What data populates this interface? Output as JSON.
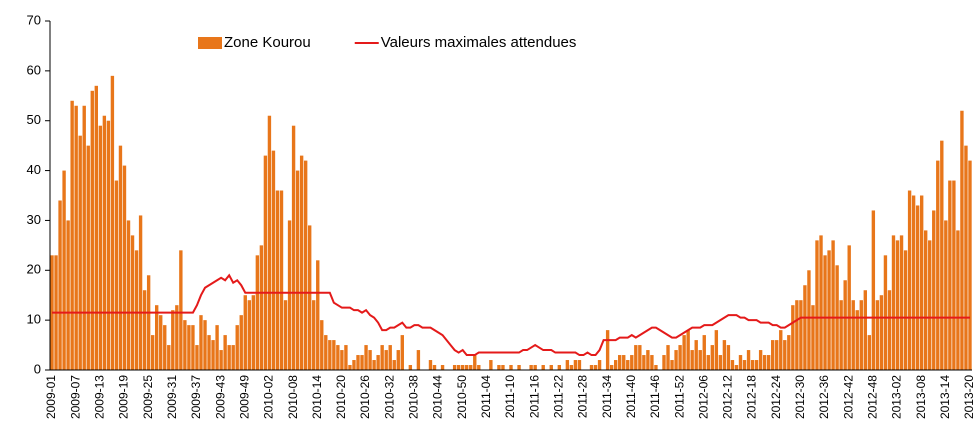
{
  "chart_data": {
    "type": "bar",
    "categories": [
      "2009-01",
      null,
      null,
      null,
      null,
      null,
      "2009-07",
      null,
      null,
      null,
      null,
      null,
      "2009-13",
      null,
      null,
      null,
      null,
      null,
      "2009-19",
      null,
      null,
      null,
      null,
      null,
      "2009-25",
      null,
      null,
      null,
      null,
      null,
      "2009-31",
      null,
      null,
      null,
      null,
      null,
      "2009-37",
      null,
      null,
      null,
      null,
      null,
      "2009-43",
      null,
      null,
      null,
      null,
      null,
      "2009-49",
      null,
      null,
      null,
      null,
      null,
      "2010-02",
      null,
      null,
      null,
      null,
      null,
      "2010-08",
      null,
      null,
      null,
      null,
      null,
      "2010-14",
      null,
      null,
      null,
      null,
      null,
      "2010-20",
      null,
      null,
      null,
      null,
      null,
      "2010-26",
      null,
      null,
      null,
      null,
      null,
      "2010-32",
      null,
      null,
      null,
      null,
      null,
      "2010-38",
      null,
      null,
      null,
      null,
      null,
      "2010-44",
      null,
      null,
      null,
      null,
      null,
      "2010-50",
      null,
      null,
      null,
      null,
      null,
      "2011-04",
      null,
      null,
      null,
      null,
      null,
      "2011-10",
      null,
      null,
      null,
      null,
      null,
      "2011-16",
      null,
      null,
      null,
      null,
      null,
      "2011-22",
      null,
      null,
      null,
      null,
      null,
      "2011-28",
      null,
      null,
      null,
      null,
      null,
      "2011-34",
      null,
      null,
      null,
      null,
      null,
      "2011-40",
      null,
      null,
      null,
      null,
      null,
      "2011-46",
      null,
      null,
      null,
      null,
      null,
      "2011-52",
      null,
      null,
      null,
      null,
      null,
      "2012-06",
      null,
      null,
      null,
      null,
      null,
      "2012-12",
      null,
      null,
      null,
      null,
      null,
      "2012-18",
      null,
      null,
      null,
      null,
      null,
      "2012-24",
      null,
      null,
      null,
      null,
      null,
      "2012-30",
      null,
      null,
      null,
      null,
      null,
      "2012-36",
      null,
      null,
      null,
      null,
      null,
      "2012-42",
      null,
      null,
      null,
      null,
      null,
      "2012-48",
      null,
      null,
      null,
      null,
      null,
      "2013-02",
      null,
      null,
      null,
      null,
      null,
      "2013-08",
      null,
      null,
      null,
      null,
      null,
      "2013-14",
      null,
      null,
      null,
      null,
      null,
      "2013-20"
    ],
    "series": [
      {
        "name": "Zone Kourou",
        "color": "#e8761a",
        "kind": "bar",
        "values": [
          23,
          23,
          34,
          40,
          30,
          54,
          53,
          47,
          53,
          45,
          56,
          57,
          49,
          51,
          50,
          59,
          38,
          45,
          41,
          30,
          27,
          24,
          31,
          16,
          19,
          7,
          13,
          11,
          9,
          5,
          12,
          13,
          24,
          10,
          9,
          9,
          5,
          11,
          10,
          7,
          6,
          9,
          4,
          7,
          5,
          5,
          9,
          11,
          15,
          14,
          15,
          23,
          25,
          43,
          51,
          44,
          36,
          36,
          14,
          30,
          49,
          40,
          43,
          42,
          29,
          14,
          22,
          10,
          7,
          6,
          6,
          5,
          4,
          5,
          1,
          2,
          3,
          3,
          5,
          4,
          2,
          3,
          5,
          4,
          5,
          2,
          4,
          7,
          0,
          1,
          0,
          4,
          0,
          0,
          2,
          1,
          0,
          1,
          0,
          0,
          1,
          1,
          1,
          1,
          1,
          3,
          1,
          0,
          0,
          2,
          0,
          1,
          1,
          0,
          1,
          0,
          1,
          0,
          0,
          1,
          1,
          0,
          1,
          0,
          1,
          0,
          1,
          0,
          2,
          1,
          2,
          2,
          0,
          0,
          1,
          1,
          2,
          0,
          8,
          1,
          2,
          3,
          3,
          2,
          3,
          5,
          5,
          3,
          4,
          3,
          1,
          0,
          3,
          5,
          2,
          4,
          5,
          7,
          8,
          4,
          6,
          4,
          7,
          3,
          5,
          8,
          3,
          6,
          5,
          2,
          1,
          3,
          2,
          4,
          2,
          2,
          4,
          3,
          3,
          6,
          6,
          8,
          6,
          7,
          13,
          14,
          14,
          17,
          20,
          13,
          26,
          27,
          23,
          24,
          26,
          21,
          14,
          18,
          25,
          14,
          12,
          14,
          16,
          7,
          32,
          14,
          15,
          23,
          16,
          27,
          26,
          27,
          24,
          36,
          35,
          33,
          35,
          28,
          26,
          32,
          42,
          46,
          30,
          38,
          38,
          28,
          52,
          45,
          42
        ]
      },
      {
        "name": "Valeurs maximales attendues",
        "color": "#e41a1a",
        "kind": "line",
        "values": [
          11.5,
          11.5,
          11.5,
          11.5,
          11.5,
          11.5,
          11.5,
          11.5,
          11.5,
          11.5,
          11.5,
          11.5,
          11.5,
          11.5,
          11.5,
          11.5,
          11.5,
          11.5,
          11.5,
          11.5,
          11.5,
          11.5,
          11.5,
          11.5,
          11.5,
          11.5,
          11.5,
          11.5,
          11.5,
          11.5,
          11.5,
          11.5,
          11.5,
          11.5,
          11.5,
          11.5,
          13,
          15,
          16.5,
          17,
          17.5,
          18,
          18.5,
          18,
          19,
          17.5,
          18,
          17,
          15.5,
          15.5,
          15.5,
          15.5,
          15.5,
          15.5,
          15.5,
          15.5,
          15.5,
          15.5,
          15.5,
          15.5,
          15.5,
          15.5,
          15.5,
          15.5,
          15.5,
          15.5,
          15.5,
          15.5,
          15.5,
          15.5,
          13.5,
          13,
          12.5,
          12.5,
          12.5,
          12,
          12,
          11.5,
          12,
          11,
          10.5,
          9.5,
          8,
          8,
          8.5,
          8.5,
          9,
          9.5,
          8.5,
          8.5,
          9,
          9,
          8.5,
          8.5,
          8.5,
          8,
          7.5,
          7,
          6,
          5,
          4,
          3.5,
          4,
          3,
          3,
          3,
          3.5,
          3.5,
          3.5,
          3.5,
          3.5,
          3.5,
          3.5,
          3.5,
          3.5,
          3.5,
          3.5,
          4,
          4,
          4.5,
          5,
          4.5,
          4,
          4,
          4,
          3.5,
          3.5,
          3.5,
          3.5,
          3.5,
          3.5,
          3,
          3,
          3.5,
          3,
          3,
          4,
          6,
          6,
          6,
          6,
          6.5,
          6.5,
          6.5,
          7,
          6.5,
          7,
          7.5,
          8,
          8.5,
          8.5,
          8,
          7.5,
          7,
          6.5,
          6.5,
          7,
          7.5,
          8,
          8.5,
          8.5,
          8.5,
          9,
          9,
          9,
          9.5,
          10,
          10.5,
          11,
          11,
          11,
          10.5,
          10.5,
          10,
          10,
          10,
          9.5,
          9.5,
          9.5,
          9,
          9,
          8.5,
          8.5,
          9,
          9.5,
          10,
          10.5,
          10.5,
          10.5,
          10.5,
          10.5,
          10.5,
          10.5,
          10.5,
          10.5,
          10.5,
          10.5,
          10.5,
          10.5,
          10.5,
          10.5,
          10.5,
          10.5,
          10.5,
          10.5,
          10.5,
          10.5,
          10.5,
          10.5,
          10.5,
          10.5,
          10.5,
          10.5,
          10.5,
          10.5,
          10.5,
          10.5,
          10.5,
          10.5,
          10.5,
          10.5,
          10.5,
          10.5,
          10.5,
          10.5,
          10.5,
          10.5,
          10.5,
          10.5
        ]
      }
    ],
    "ylim": [
      0,
      70
    ],
    "yticks": [
      0,
      10,
      20,
      30,
      40,
      50,
      60,
      70
    ],
    "grid": false,
    "legend": "top"
  }
}
